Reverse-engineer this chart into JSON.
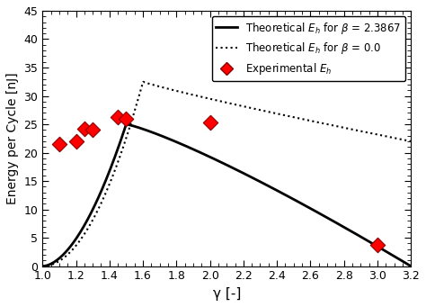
{
  "title": "",
  "xlabel": "γ [-]",
  "ylabel": "Energy per Cycle [nJ]",
  "xlim": [
    1.0,
    3.2
  ],
  "ylim": [
    0,
    45
  ],
  "xticks": [
    1.0,
    1.2,
    1.4,
    1.6,
    1.8,
    2.0,
    2.2,
    2.4,
    2.6,
    2.8,
    3.0,
    3.2
  ],
  "yticks": [
    0,
    5,
    10,
    15,
    20,
    25,
    30,
    35,
    40,
    45
  ],
  "legend_labels": [
    "Theoretical $E_h$ for $\\beta$ = 2.3867",
    "Theoretical $E_h$ for $\\beta$ = 0.0",
    "Experimental $E_h$"
  ],
  "solid_line_color": "black",
  "dotted_line_color": "black",
  "exp_marker_color": "red",
  "exp_marker_edge_color": "#8b0000",
  "exp_points_x": [
    1.1,
    1.2,
    1.25,
    1.3,
    1.45,
    1.5,
    2.0,
    3.0
  ],
  "exp_points_y": [
    21.5,
    22.0,
    24.2,
    24.0,
    26.3,
    26.0,
    25.3,
    3.8
  ],
  "solid_x_start": 1.0,
  "solid_x_end": 3.2,
  "solid_peak_x": 1.5,
  "solid_peak_y": 25.0,
  "dotted_x_start": 1.0,
  "dotted_x_end": 3.2,
  "dotted_peak_x": 1.6,
  "dotted_peak_y": 32.5,
  "background_color": "white"
}
